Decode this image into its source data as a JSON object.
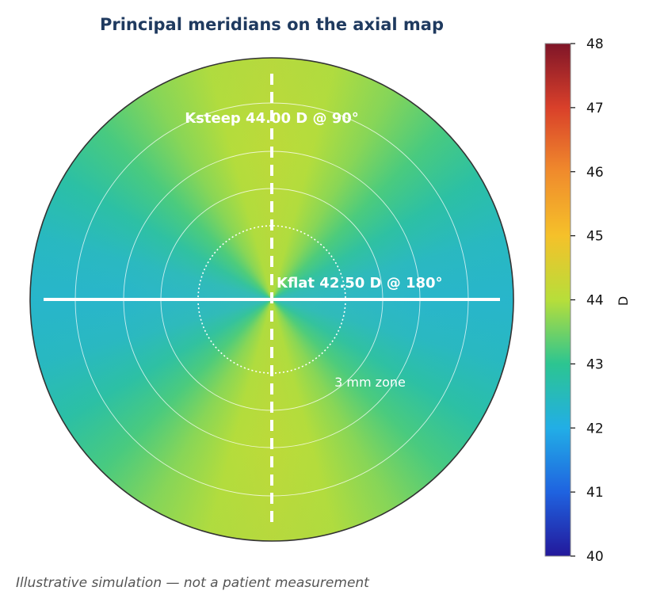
{
  "chart_data": {
    "type": "heatmap",
    "subtype": "corneal-axial-map",
    "title": "Principal meridians on the axial map",
    "colorbar": {
      "label": "D",
      "range": [
        40,
        48
      ],
      "ticks": [
        "40",
        "41",
        "42",
        "43",
        "44",
        "45",
        "46",
        "47",
        "48"
      ],
      "colors": [
        "#23189b",
        "#1f63e0",
        "#22aee6",
        "#2cc591",
        "#b7de3a",
        "#f5c12a",
        "#f08b2c",
        "#d9402a",
        "#7f1528"
      ]
    },
    "meridians": [
      {
        "name": "Ksteep",
        "power_D": 44.0,
        "axis_deg": 90,
        "label": "Ksteep 44.00 D @ 90°",
        "line_style": "dashed"
      },
      {
        "name": "Kflat",
        "power_D": 42.5,
        "axis_deg": 180,
        "label": "Kflat 42.50 D @ 180°",
        "line_style": "solid"
      }
    ],
    "zone": {
      "diameter_mm": 3,
      "label": "3 mm zone"
    },
    "grid": true,
    "footnote": "Illustrative simulation — not a patient measurement"
  },
  "colors": {
    "title": "#1f3a5f",
    "overlay": "#ffffff",
    "outline": "#333333",
    "footnote": "#555555"
  }
}
